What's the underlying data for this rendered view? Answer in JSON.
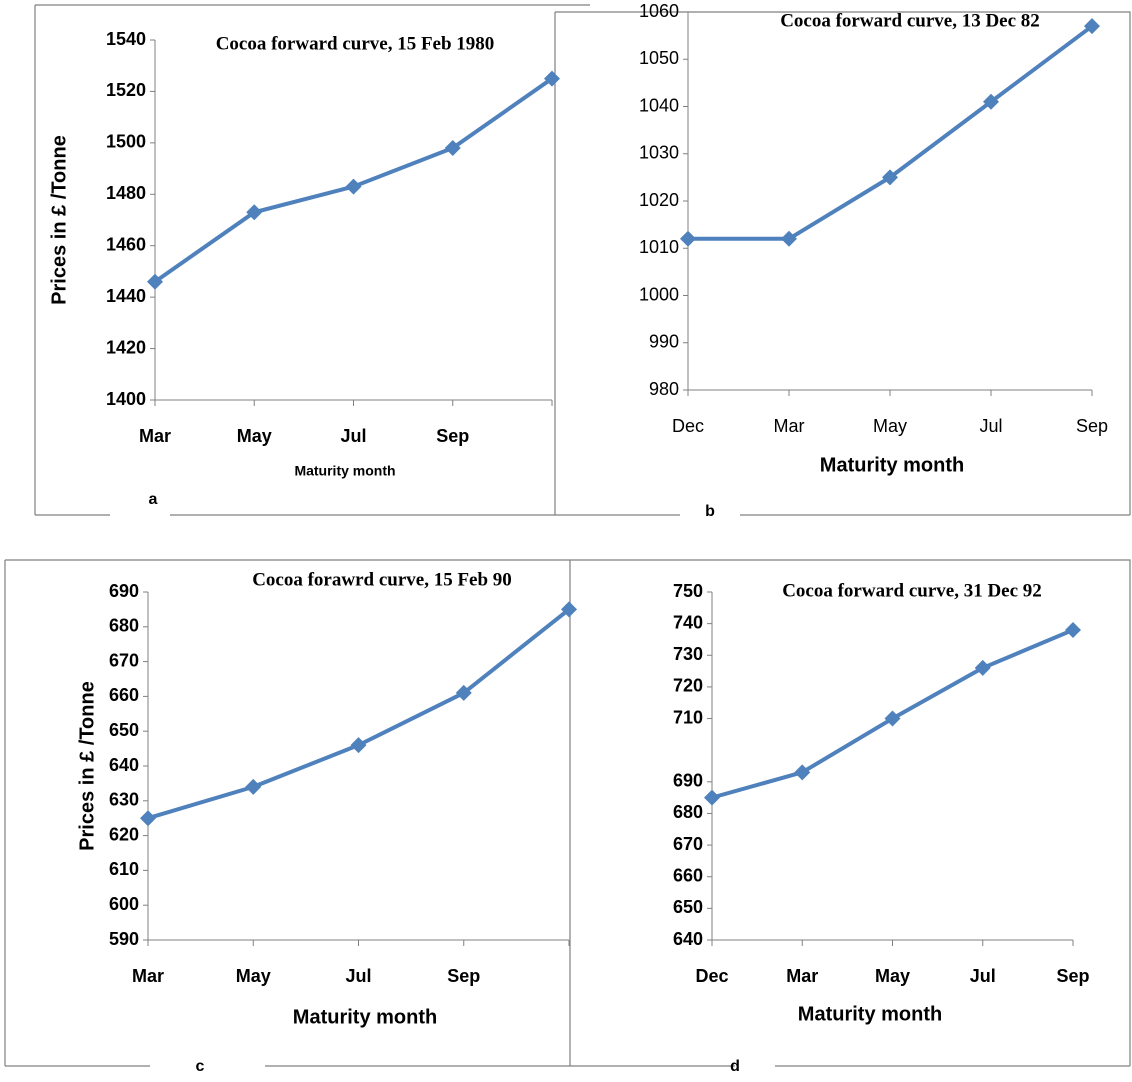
{
  "chart_data": [
    {
      "type": "line",
      "title": "Cocoa forward curve, 15 Feb 1980",
      "panel_label": "a",
      "xlabel": "Maturity month",
      "ylabel": "Prices in £ /Tonne",
      "categories": [
        "Mar",
        "May",
        "Jul",
        "Sep",
        null
      ],
      "series": [
        {
          "color": "#4f81bd",
          "values": [
            1446,
            1473,
            1483,
            1498,
            1525
          ]
        }
      ],
      "ylim": [
        1400,
        1540
      ],
      "yticks": [
        1400,
        1420,
        1440,
        1460,
        1480,
        1500,
        1520,
        1540
      ]
    },
    {
      "type": "line",
      "title": "Cocoa forward curve, 13 Dec 82",
      "panel_label": "b",
      "xlabel": "Maturity month",
      "categories": [
        "Dec",
        "Mar",
        "May",
        "Jul",
        "Sep"
      ],
      "series": [
        {
          "color": "#4f81bd",
          "values": [
            1012,
            1012,
            1025,
            1041,
            1057
          ]
        }
      ],
      "ylim": [
        980,
        1060
      ],
      "yticks": [
        980,
        990,
        1000,
        1010,
        1020,
        1030,
        1040,
        1050,
        1060
      ]
    },
    {
      "type": "line",
      "title": "Cocoa forawrd curve, 15 Feb 90",
      "panel_label": "c",
      "xlabel": "Maturity month",
      "ylabel": "Prices in £ /Tonne",
      "categories": [
        "Mar",
        "May",
        "Jul",
        "Sep",
        null
      ],
      "series": [
        {
          "color": "#4f81bd",
          "values": [
            625,
            634,
            646,
            661,
            685
          ]
        }
      ],
      "ylim": [
        590,
        690
      ],
      "yticks": [
        590,
        600,
        610,
        620,
        630,
        640,
        650,
        660,
        670,
        680,
        690
      ]
    },
    {
      "type": "line",
      "title": "Cocoa forward curve, 31 Dec 92",
      "panel_label": "d",
      "xlabel": "Maturity month",
      "categories": [
        "Dec",
        "Mar",
        "May",
        "Jul",
        "Sep"
      ],
      "series": [
        {
          "color": "#4f81bd",
          "values": [
            685,
            693,
            710,
            726,
            738
          ]
        }
      ],
      "ylim": [
        640,
        750
      ],
      "yticks": [
        640,
        650,
        660,
        670,
        680,
        690,
        710,
        720,
        730,
        740,
        750
      ]
    }
  ]
}
